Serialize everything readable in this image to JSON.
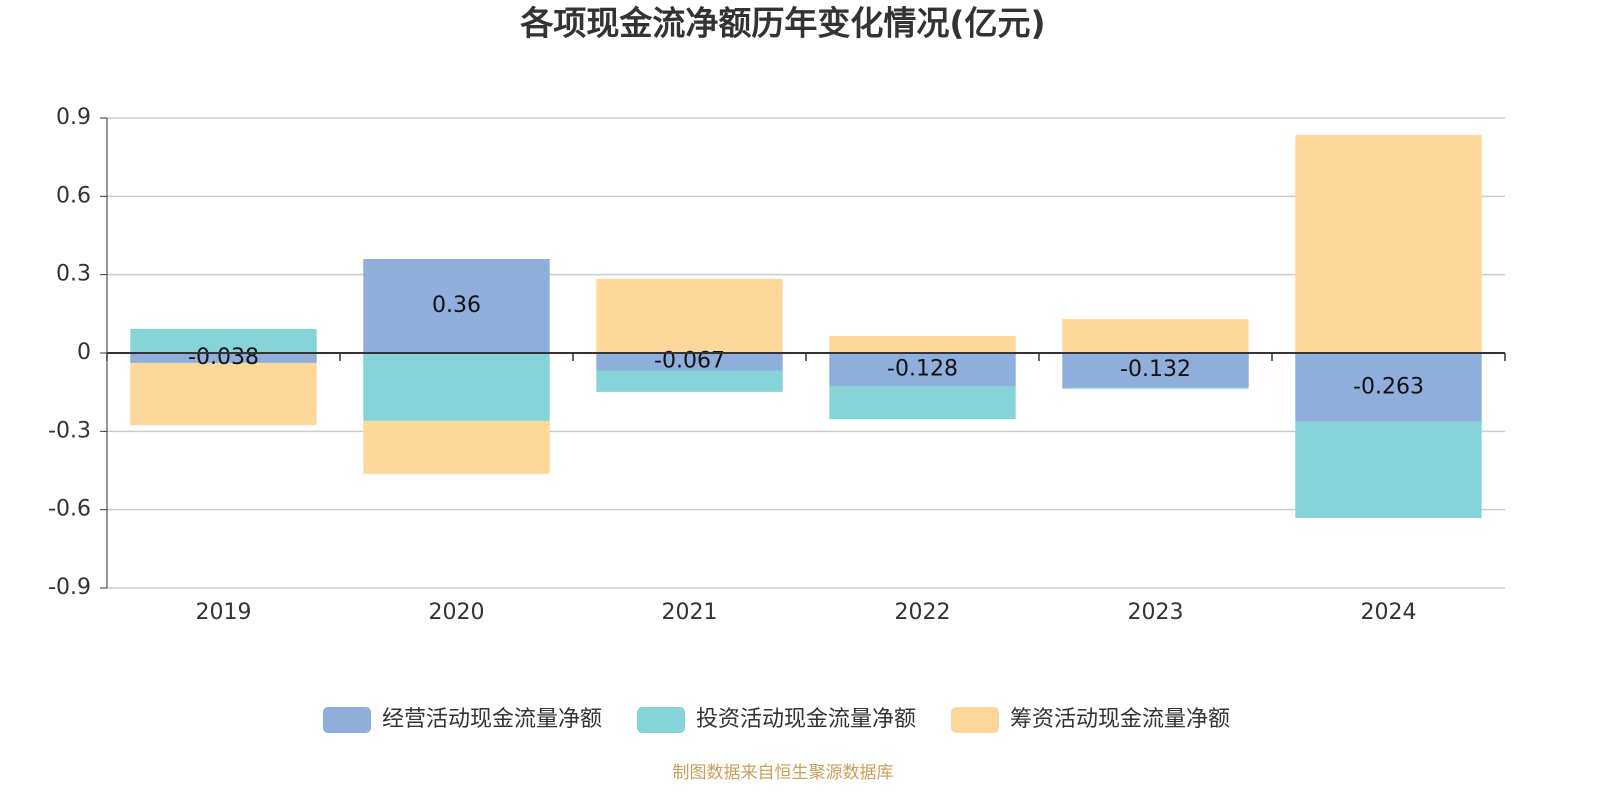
{
  "chart_data": {
    "type": "bar",
    "stacked": true,
    "title": "各项现金流净额历年变化情况(亿元)",
    "categories": [
      "2019",
      "2020",
      "2021",
      "2022",
      "2023",
      "2024"
    ],
    "series": [
      {
        "name": "经营活动现金流量净额",
        "color": "#8eaedb",
        "values": [
          -0.038,
          0.36,
          -0.067,
          -0.128,
          -0.132,
          -0.263
        ],
        "show_labels": true
      },
      {
        "name": "投资活动现金流量净额",
        "color": "#86d4d8",
        "values": [
          0.092,
          -0.26,
          -0.082,
          -0.125,
          -0.005,
          -0.369
        ],
        "show_labels": false
      },
      {
        "name": "筹资活动现金流量净额",
        "color": "#fdd89a",
        "values": [
          -0.238,
          -0.203,
          0.284,
          0.065,
          0.13,
          0.835
        ],
        "show_labels": false
      }
    ],
    "ylim": [
      -0.9,
      0.9
    ],
    "yticks": [
      -0.9,
      -0.6,
      -0.3,
      0,
      0.3,
      0.6,
      0.9
    ],
    "grid": true,
    "legend": "bottom",
    "source": "制图数据来自恒生聚源数据库"
  }
}
